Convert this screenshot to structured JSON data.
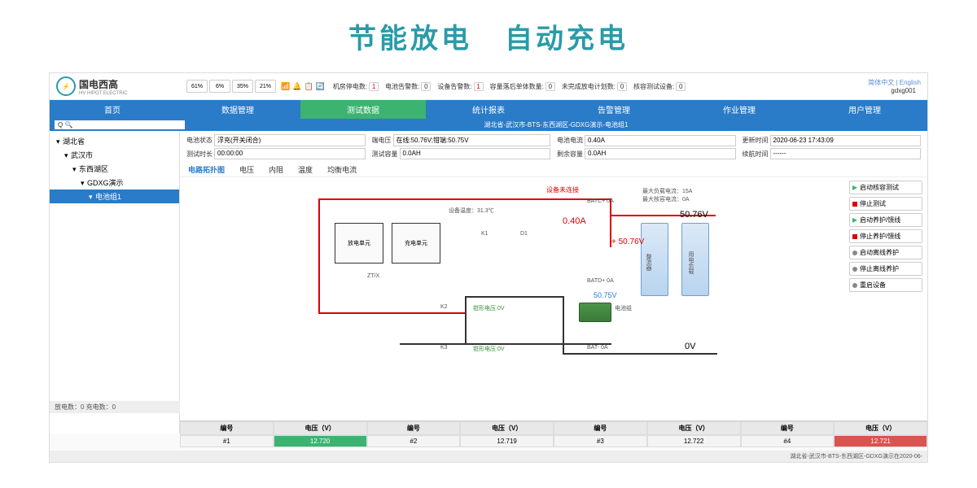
{
  "hero": {
    "left": "节能放电",
    "right": "自动充电"
  },
  "brand": {
    "name": "国电西高",
    "sub": "HV HIPOT ELECTRIC",
    "logo": "⚡"
  },
  "gauges": [
    "61%",
    "6%",
    "35%",
    "21%"
  ],
  "header_stats": [
    {
      "label": "机房停电数:",
      "value": "1",
      "cls": "v-red"
    },
    {
      "label": "电池告警数:",
      "value": "0"
    },
    {
      "label": "设备告警数:",
      "value": "1",
      "cls": "v-red"
    },
    {
      "label": "容量落后单体数量:",
      "value": "0"
    },
    {
      "label": "未完成放电计划数:",
      "value": "0"
    },
    {
      "label": "核容测试设备:",
      "value": "0"
    }
  ],
  "lang": {
    "zh": "简体中文",
    "en": "English"
  },
  "user": "gdxg001",
  "nav": [
    "首页",
    "数据管理",
    "测试数据",
    "统计报表",
    "告警管理",
    "作业管理",
    "用户管理"
  ],
  "nav_active": 2,
  "search_icon": "Q 🔍",
  "breadcrumb": "湖北省-武汉市-BTS-东西湖区-GDXG演示-电池组1",
  "tree": [
    {
      "label": "湖北省",
      "lvl": 1
    },
    {
      "label": "武汉市",
      "lvl": 2
    },
    {
      "label": "东西湖区",
      "lvl": 3
    },
    {
      "label": "GDXG演示",
      "lvl": 4
    },
    {
      "label": "电池组1",
      "lvl": 5
    }
  ],
  "sidebar_footer": "放电数：0 充电数：0",
  "form": [
    {
      "label": "电池状态",
      "value": "浮充(开关闭合)"
    },
    {
      "label": "端电压",
      "value": "在线:50.76V;钳端:50.75V"
    },
    {
      "label": "电池电流",
      "value": "0.40A"
    },
    {
      "label": "更新时间",
      "value": "2020-06-23 17:43:09"
    },
    {
      "label": "测试时长",
      "value": "00:00:00"
    },
    {
      "label": "测试容量",
      "value": "0.0AH"
    },
    {
      "label": "剩余容量",
      "value": "0.0AH"
    },
    {
      "label": "续航时间",
      "value": "------"
    }
  ],
  "sub_tabs": [
    "电路拓扑图",
    "电压",
    "内阻",
    "温度",
    "均衡电流"
  ],
  "sub_tab_active": 0,
  "actions": [
    {
      "label": "启动核容测试",
      "cls": "ico-play"
    },
    {
      "label": "停止测试",
      "cls": "ico-stop"
    },
    {
      "label": "启动养护/馈线",
      "cls": "ico-play"
    },
    {
      "label": "停止养护/馈线",
      "cls": "ico-stop"
    },
    {
      "label": "启动离线养护",
      "cls": "ico-gear"
    },
    {
      "label": "停止离线养护",
      "cls": "ico-gear"
    },
    {
      "label": "重启设备",
      "cls": "ico-gear"
    }
  ],
  "diagram": {
    "device_offline": "设备未连接",
    "temp": "设备温度：31.3℃",
    "current": "0.40A",
    "voltage_main": "50.76V",
    "max_load": "最大负载电流：15A",
    "max_test": "最大核容电流：0A",
    "discharge_unit": "放电单元",
    "charge_unit": "充电单元",
    "rectifier": "整流器",
    "load": "用电负载",
    "battery": "电池组",
    "clamp_v": "钳形电压:0V",
    "zero_v": "0V",
    "v50_75": "50.75V",
    "v50_76p": "+ 50.76V",
    "batc_p": "BATC+ 0A",
    "batd_p": "BATD+ 0A",
    "bat_n": "BAT- 0A",
    "k1": "K1",
    "k2": "K2",
    "k3": "K3",
    "d1": "D1",
    "ztx": "ZT/X"
  },
  "table": {
    "headers": [
      "编号",
      "电压（V）",
      "编号",
      "电压（V）",
      "编号",
      "电压（V）",
      "编号",
      "电压（V）"
    ],
    "row": [
      "#1",
      "12.720",
      "#2",
      "12.719",
      "#3",
      "12.722",
      "#4",
      "12.721"
    ]
  },
  "status_bar": "湖北省-武汉市-BTS-东西湖区-GDXG演示在2020-06-"
}
